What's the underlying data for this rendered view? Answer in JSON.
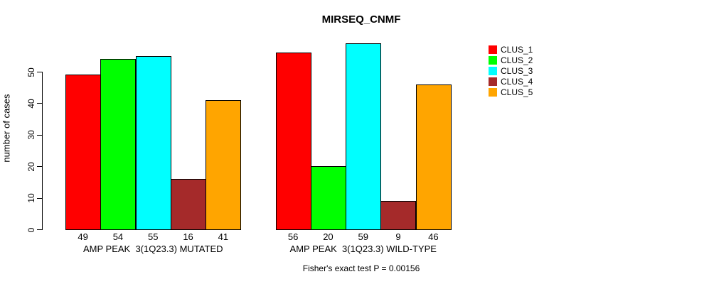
{
  "title": "MIRSEQ_CNMF",
  "ylabel": "number of cases",
  "footer": "Fisher's exact test P = 0.00156",
  "legend": {
    "entries": [
      {
        "label": "CLUS_1",
        "color": "#FF0000"
      },
      {
        "label": "CLUS_2",
        "color": "#00FF00"
      },
      {
        "label": "CLUS_3",
        "color": "#00FFFF"
      },
      {
        "label": "CLUS_4",
        "color": "#A52A2A"
      },
      {
        "label": "CLUS_5",
        "color": "#FFA500"
      }
    ]
  },
  "chart_data": {
    "type": "bar",
    "title": "MIRSEQ_CNMF",
    "xlabel": "",
    "ylabel": "number of cases",
    "ylim": [
      0,
      59
    ],
    "yticks": [
      0,
      10,
      20,
      30,
      40,
      50
    ],
    "grid": false,
    "legend_position": "right-outside",
    "series": [
      "CLUS_1",
      "CLUS_2",
      "CLUS_3",
      "CLUS_4",
      "CLUS_5"
    ],
    "colors": [
      "#FF0000",
      "#00FF00",
      "#00FFFF",
      "#A52A2A",
      "#FFA500"
    ],
    "groups": [
      {
        "label": "AMP PEAK  3(1Q23.3) MUTATED",
        "values": [
          49,
          54,
          55,
          16,
          41
        ]
      },
      {
        "label": "AMP PEAK  3(1Q23.3) WILD-TYPE",
        "values": [
          56,
          20,
          59,
          9,
          46
        ]
      }
    ],
    "bar_value_labels_shown": true,
    "annotation": "Fisher's exact test P = 0.00156"
  }
}
